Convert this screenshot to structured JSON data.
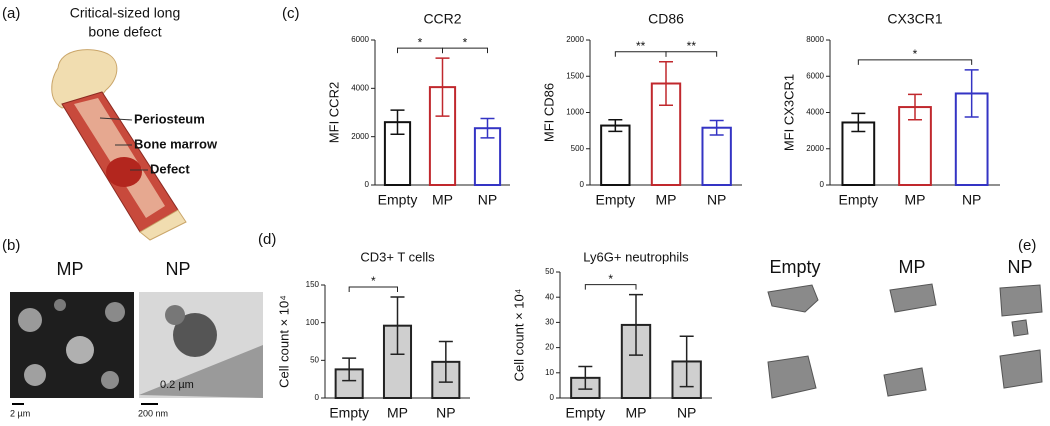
{
  "panels": {
    "a": "(a)",
    "b": "(b)",
    "c": "(c)",
    "d": "(d)",
    "e": "(e)"
  },
  "bone": {
    "title": [
      "Critical-sized long",
      "bone defect"
    ],
    "labels": [
      "Periosteum",
      "Bone marrow",
      "Defect"
    ]
  },
  "micrographs": {
    "labels": [
      "MP",
      "NP"
    ],
    "scale_bars": [
      "2 µm",
      "200 nm"
    ],
    "inset": "0.2 µm"
  },
  "ct": {
    "labels": [
      "Empty",
      "MP",
      "NP"
    ]
  },
  "chart_data": [
    {
      "type": "bar",
      "title": "CCR2",
      "ylabel": "MFI CCR2",
      "categories": [
        "Empty",
        "MP",
        "NP"
      ],
      "values": [
        2600,
        4050,
        2350
      ],
      "errors": [
        500,
        1200,
        400
      ],
      "colors": [
        "#111111",
        "#c0282d",
        "#3434c4"
      ],
      "fill": "#ffffff",
      "ylim": [
        0,
        6000
      ],
      "yticks": [
        0,
        2000,
        4000,
        6000
      ],
      "significance": [
        {
          "pair": [
            "Empty",
            "MP"
          ],
          "label": "*"
        },
        {
          "pair": [
            "MP",
            "NP"
          ],
          "label": "*"
        }
      ]
    },
    {
      "type": "bar",
      "title": "CD86",
      "ylabel": "MFI CD86",
      "categories": [
        "Empty",
        "MP",
        "NP"
      ],
      "values": [
        820,
        1400,
        790
      ],
      "errors": [
        80,
        300,
        100
      ],
      "colors": [
        "#111111",
        "#c0282d",
        "#3434c4"
      ],
      "fill": "#ffffff",
      "ylim": [
        0,
        2000
      ],
      "yticks": [
        0,
        500,
        1000,
        1500,
        2000
      ],
      "significance": [
        {
          "pair": [
            "Empty",
            "MP"
          ],
          "label": "**"
        },
        {
          "pair": [
            "MP",
            "NP"
          ],
          "label": "**"
        }
      ]
    },
    {
      "type": "bar",
      "title": "CX3CR1",
      "ylabel": "MFI CX3CR1",
      "categories": [
        "Empty",
        "MP",
        "NP"
      ],
      "values": [
        3450,
        4300,
        5050
      ],
      "errors": [
        500,
        700,
        1300
      ],
      "colors": [
        "#111111",
        "#c0282d",
        "#3434c4"
      ],
      "fill": "#ffffff",
      "ylim": [
        0,
        8000
      ],
      "yticks": [
        0,
        2000,
        4000,
        6000,
        8000
      ],
      "significance": [
        {
          "pair": [
            "Empty",
            "NP"
          ],
          "label": "*"
        }
      ]
    },
    {
      "type": "bar",
      "title": "CD3+ T cells",
      "ylabel": "Cell count × 10⁴",
      "categories": [
        "Empty",
        "MP",
        "NP"
      ],
      "values": [
        38,
        96,
        48
      ],
      "errors": [
        15,
        38,
        27
      ],
      "colors": [
        "#222222",
        "#222222",
        "#222222"
      ],
      "fill": "#cfcfcf",
      "ylim": [
        0,
        150
      ],
      "yticks": [
        0,
        50,
        100,
        150
      ],
      "significance": [
        {
          "pair": [
            "Empty",
            "MP"
          ],
          "label": "*"
        }
      ]
    },
    {
      "type": "bar",
      "title": "Ly6G+ neutrophils",
      "ylabel": "Cell count × 10⁴",
      "categories": [
        "Empty",
        "MP",
        "NP"
      ],
      "values": [
        8,
        29,
        14.5
      ],
      "errors": [
        4.5,
        12,
        10
      ],
      "colors": [
        "#222222",
        "#222222",
        "#222222"
      ],
      "fill": "#cfcfcf",
      "ylim": [
        0,
        50
      ],
      "yticks": [
        0,
        10,
        20,
        30,
        40,
        50
      ],
      "significance": [
        {
          "pair": [
            "Empty",
            "MP"
          ],
          "label": "*"
        }
      ]
    }
  ]
}
